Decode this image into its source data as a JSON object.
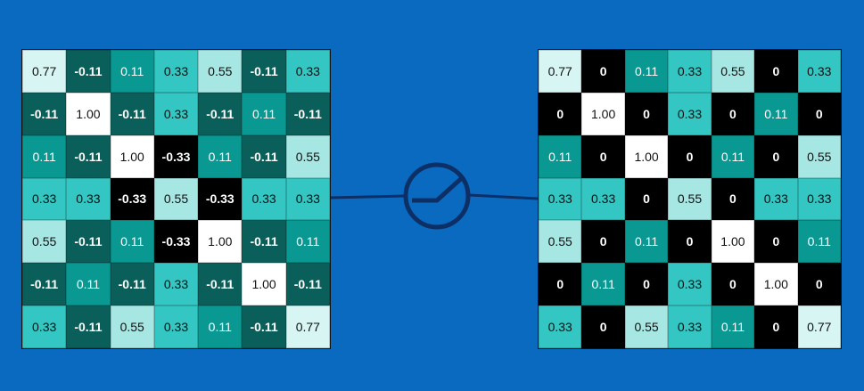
{
  "input_matrix": [
    [
      "0.77",
      "-0.11",
      "0.11",
      "0.33",
      "0.55",
      "-0.11",
      "0.33"
    ],
    [
      "-0.11",
      "1.00",
      "-0.11",
      "0.33",
      "-0.11",
      "0.11",
      "-0.11"
    ],
    [
      "0.11",
      "-0.11",
      "1.00",
      "-0.33",
      "0.11",
      "-0.11",
      "0.55"
    ],
    [
      "0.33",
      "0.33",
      "-0.33",
      "0.55",
      "-0.33",
      "0.33",
      "0.33"
    ],
    [
      "0.55",
      "-0.11",
      "0.11",
      "-0.33",
      "1.00",
      "-0.11",
      "0.11"
    ],
    [
      "-0.11",
      "0.11",
      "-0.11",
      "0.33",
      "-0.11",
      "1.00",
      "-0.11"
    ],
    [
      "0.33",
      "-0.11",
      "0.55",
      "0.33",
      "0.11",
      "-0.11",
      "0.77"
    ]
  ],
  "output_matrix": [
    [
      "0.77",
      "0",
      "0.11",
      "0.33",
      "0.55",
      "0",
      "0.33"
    ],
    [
      "0",
      "1.00",
      "0",
      "0.33",
      "0",
      "0.11",
      "0"
    ],
    [
      "0.11",
      "0",
      "1.00",
      "0",
      "0.11",
      "0",
      "0.55"
    ],
    [
      "0.33",
      "0.33",
      "0",
      "0.55",
      "0",
      "0.33",
      "0.33"
    ],
    [
      "0.55",
      "0",
      "0.11",
      "0",
      "1.00",
      "0",
      "0.11"
    ],
    [
      "0",
      "0.11",
      "0",
      "0.33",
      "0",
      "1.00",
      "0"
    ],
    [
      "0.33",
      "0",
      "0.55",
      "0.33",
      "0.11",
      "0",
      "0.77"
    ]
  ],
  "cell_colors": {
    "1.00": {
      "bg": "#ffffff",
      "fg": "#111111",
      "bold": false
    },
    "0.77": {
      "bg": "#d6f5f3",
      "fg": "#111111",
      "bold": false
    },
    "0.55": {
      "bg": "#a6e6e3",
      "fg": "#111111",
      "bold": false
    },
    "0.33": {
      "bg": "#33c6c2",
      "fg": "#111111",
      "bold": false
    },
    "0.11": {
      "bg": "#0a9893",
      "fg": "#ffffff",
      "bold": false
    },
    "-0.11": {
      "bg": "#0b5f5a",
      "fg": "#ffffff",
      "bold": true
    },
    "-0.33": {
      "bg": "#000000",
      "fg": "#ffffff",
      "bold": true
    },
    "0": {
      "bg": "#000000",
      "fg": "#ffffff",
      "bold": true
    }
  },
  "background_color": "#0a6ac0",
  "connector_color": "#0c2f66",
  "operator_icon": "relu-activation-icon"
}
